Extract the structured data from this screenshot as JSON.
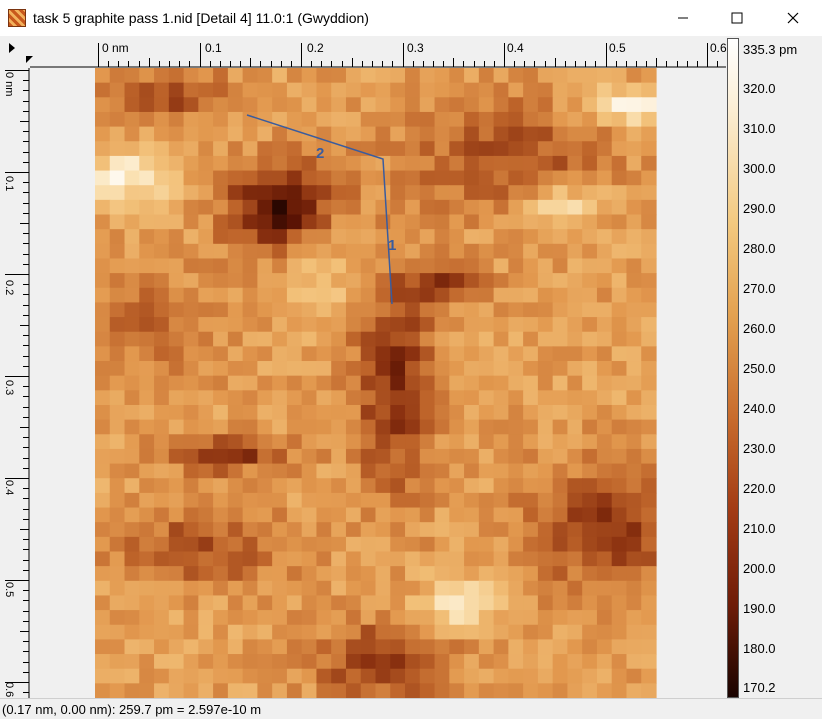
{
  "window": {
    "title": "task 5 graphite pass 1.nid [Detail 4] 11.0:1 (Gwyddion)",
    "controls": [
      "minimize",
      "maximize",
      "close"
    ]
  },
  "icons": [
    "app-icon",
    "minimize-icon",
    "maximize-icon",
    "close-icon",
    "ruler-menu-arrow-icon"
  ],
  "rulers": {
    "horizontal": [
      "0 nm",
      "0.1",
      "0.2",
      "0.3",
      "0.4",
      "0.5",
      "0.6"
    ],
    "vertical": [
      "0 nm",
      "0.1",
      "0.2",
      "0.3",
      "0.4",
      "0.5",
      "0.6"
    ]
  },
  "image": {
    "grid_cols": 38,
    "grid_rows": 43,
    "profile_labels": [
      "1",
      "2"
    ],
    "profile_line_color": "#3a5c9e"
  },
  "colorbar": {
    "max_label": "335.3 pm",
    "labels": [
      "320.0",
      "310.0",
      "300.0",
      "290.0",
      "280.0",
      "270.0",
      "260.0",
      "250.0",
      "240.0",
      "230.0",
      "220.0",
      "210.0",
      "200.0",
      "190.0",
      "180.0",
      "170.2"
    ]
  },
  "status": {
    "text": "(0.17 nm, 0.00 nm): 259.7 pm = 2.597e-10 m"
  }
}
